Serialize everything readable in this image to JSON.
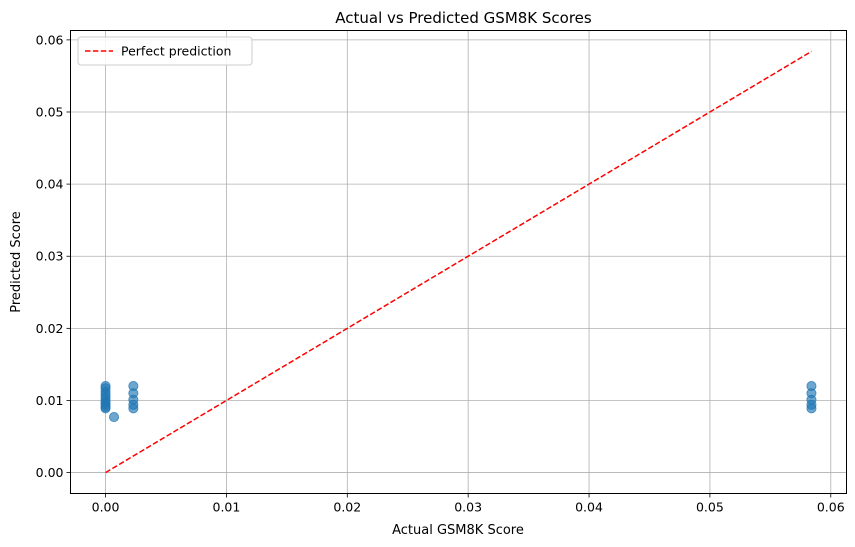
{
  "chart_data": {
    "type": "scatter",
    "title": "Actual vs Predicted GSM8K Scores",
    "xlabel": "Actual GSM8K Score",
    "ylabel": "Predicted Score",
    "xlim": [
      -0.0029,
      0.0613
    ],
    "ylim": [
      -0.0029,
      0.0613
    ],
    "xticks": [
      0.0,
      0.01,
      0.02,
      0.03,
      0.04,
      0.05,
      0.06
    ],
    "yticks": [
      0.0,
      0.01,
      0.02,
      0.03,
      0.04,
      0.05,
      0.06
    ],
    "xtick_labels": [
      "0.00",
      "0.01",
      "0.02",
      "0.03",
      "0.04",
      "0.05",
      "0.06"
    ],
    "ytick_labels": [
      "0.00",
      "0.01",
      "0.02",
      "0.03",
      "0.04",
      "0.05",
      "0.06"
    ],
    "grid": true,
    "legend_position": "top-left",
    "points": [
      {
        "x": 0.0,
        "y": 0.012
      },
      {
        "x": 0.0,
        "y": 0.0117
      },
      {
        "x": 0.0,
        "y": 0.0112
      },
      {
        "x": 0.0,
        "y": 0.0108
      },
      {
        "x": 0.0,
        "y": 0.0104
      },
      {
        "x": 0.0,
        "y": 0.01
      },
      {
        "x": 0.0,
        "y": 0.0097
      },
      {
        "x": 0.0,
        "y": 0.0094
      },
      {
        "x": 0.0,
        "y": 0.0091
      },
      {
        "x": 0.0,
        "y": 0.0089
      },
      {
        "x": 0.0007,
        "y": 0.0077
      },
      {
        "x": 0.0023,
        "y": 0.012
      },
      {
        "x": 0.0023,
        "y": 0.011
      },
      {
        "x": 0.0023,
        "y": 0.0101
      },
      {
        "x": 0.0023,
        "y": 0.0094
      },
      {
        "x": 0.0023,
        "y": 0.0089
      },
      {
        "x": 0.0584,
        "y": 0.012
      },
      {
        "x": 0.0584,
        "y": 0.011
      },
      {
        "x": 0.0584,
        "y": 0.0101
      },
      {
        "x": 0.0584,
        "y": 0.0094
      },
      {
        "x": 0.0584,
        "y": 0.0089
      }
    ],
    "reference_line": {
      "name": "Perfect prediction",
      "x": [
        0.0,
        0.0584
      ],
      "y": [
        0.0,
        0.0584
      ],
      "style": "dashed"
    },
    "colors": {
      "points": "#1f77b4",
      "reference_line": "#ff0000",
      "grid": "#b0b0b0",
      "axes": "#000000"
    }
  }
}
